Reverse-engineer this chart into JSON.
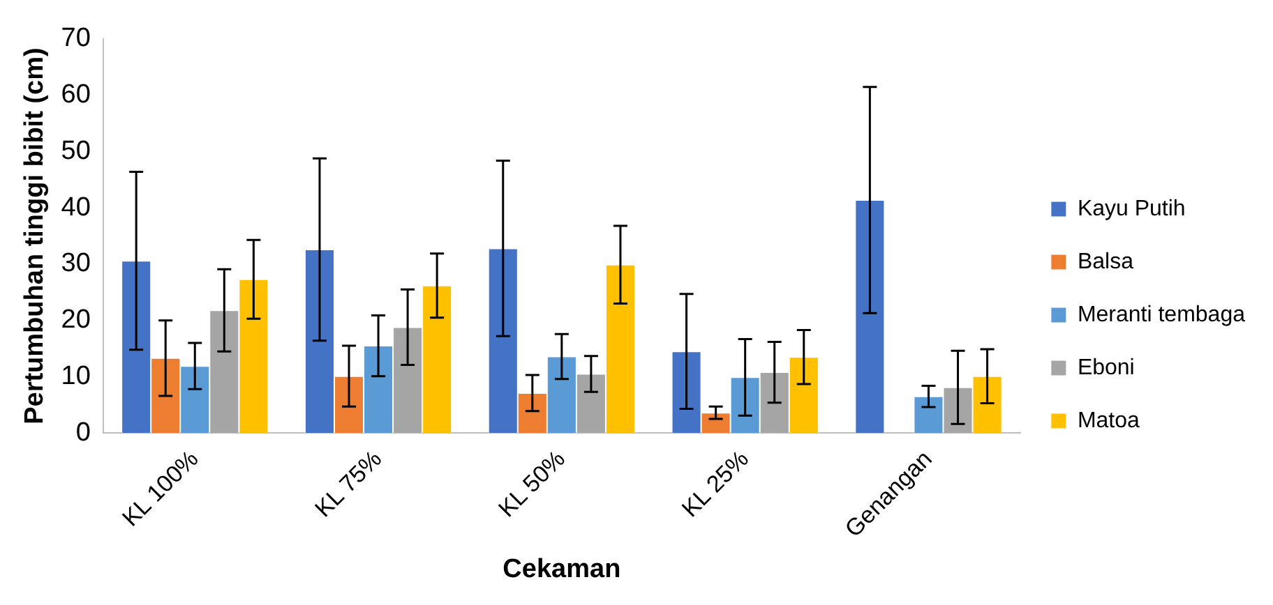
{
  "chart_data": {
    "type": "bar",
    "xlabel": "Cekaman",
    "ylabel": "Pertumbuhan tinggi bibit (cm)",
    "categories": [
      "KL 100%",
      "KL 75%",
      "KL 50%",
      "KL 25%",
      "Genangan"
    ],
    "series": [
      {
        "name": "Kayu Putih",
        "color": "#4472c4",
        "values": [
          30.6,
          32.6,
          32.8,
          14.5,
          41.4
        ],
        "errors": [
          15.8,
          16.2,
          15.6,
          10.2,
          20.1
        ]
      },
      {
        "name": "Balsa",
        "color": "#ed7d31",
        "values": [
          13.3,
          10.1,
          7.1,
          3.6,
          null
        ],
        "errors": [
          6.7,
          5.4,
          3.2,
          1.1,
          null
        ]
      },
      {
        "name": "Meranti tembaga",
        "color": "#5b9bd5",
        "values": [
          11.9,
          15.5,
          13.6,
          9.9,
          6.5
        ],
        "errors": [
          4.1,
          5.4,
          4,
          6.8,
          1.9
        ]
      },
      {
        "name": "Eboni",
        "color": "#a5a5a5",
        "values": [
          21.8,
          18.8,
          10.5,
          10.8,
          8.1
        ],
        "errors": [
          7.3,
          6.7,
          3.2,
          5.4,
          6.5
        ]
      },
      {
        "name": "Matoa",
        "color": "#ffc000",
        "values": [
          27.3,
          26.2,
          29.9,
          13.5,
          10.1
        ],
        "errors": [
          7,
          5.7,
          6.9,
          4.8,
          4.8
        ]
      }
    ],
    "ylim": [
      0,
      70
    ],
    "yticks": [
      0,
      10,
      20,
      30,
      40,
      50,
      60,
      70
    ],
    "grid": false,
    "legend": "right"
  }
}
